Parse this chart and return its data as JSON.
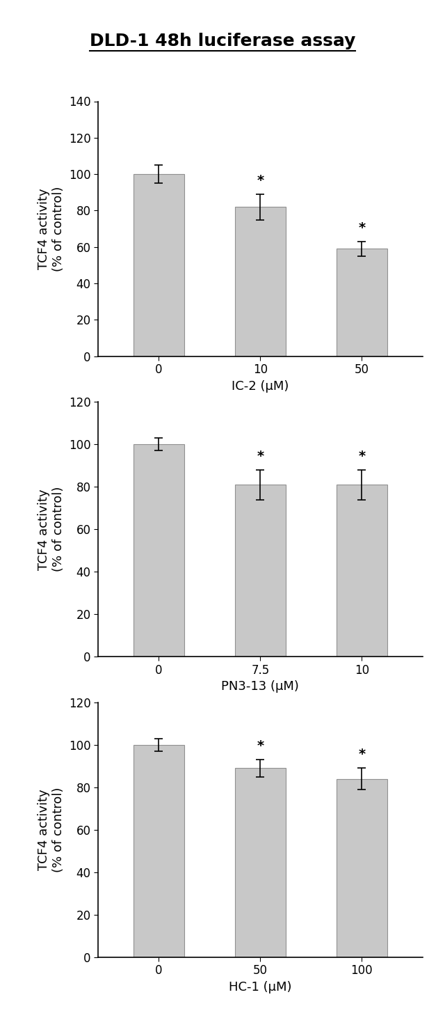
{
  "title": "DLD-1 48h luciferase assay",
  "title_fontsize": 18,
  "bar_color": "#c8c8c8",
  "bar_edgecolor": "#909090",
  "ylabel": "TCF4 activity\n(% of control)",
  "ylabel_fontsize": 13,
  "xlabel_fontsize": 13,
  "tick_fontsize": 12,
  "subplots": [
    {
      "xlabel": "IC-2 (μM)",
      "categories": [
        "0",
        "10",
        "50"
      ],
      "values": [
        100,
        82,
        59
      ],
      "errors": [
        5,
        7,
        4
      ],
      "significance": [
        false,
        true,
        true
      ],
      "ylim": [
        0,
        140
      ],
      "yticks": [
        0,
        20,
        40,
        60,
        80,
        100,
        120,
        140
      ]
    },
    {
      "xlabel": "PN3-13 (μM)",
      "categories": [
        "0",
        "7.5",
        "10"
      ],
      "values": [
        100,
        81,
        81
      ],
      "errors": [
        3,
        7,
        7
      ],
      "significance": [
        false,
        true,
        true
      ],
      "ylim": [
        0,
        120
      ],
      "yticks": [
        0,
        20,
        40,
        60,
        80,
        100,
        120
      ]
    },
    {
      "xlabel": "HC-1 (μM)",
      "categories": [
        "0",
        "50",
        "100"
      ],
      "values": [
        100,
        89,
        84
      ],
      "errors": [
        3,
        4,
        5
      ],
      "significance": [
        false,
        true,
        true
      ],
      "ylim": [
        0,
        120
      ],
      "yticks": [
        0,
        20,
        40,
        60,
        80,
        100,
        120
      ]
    }
  ]
}
